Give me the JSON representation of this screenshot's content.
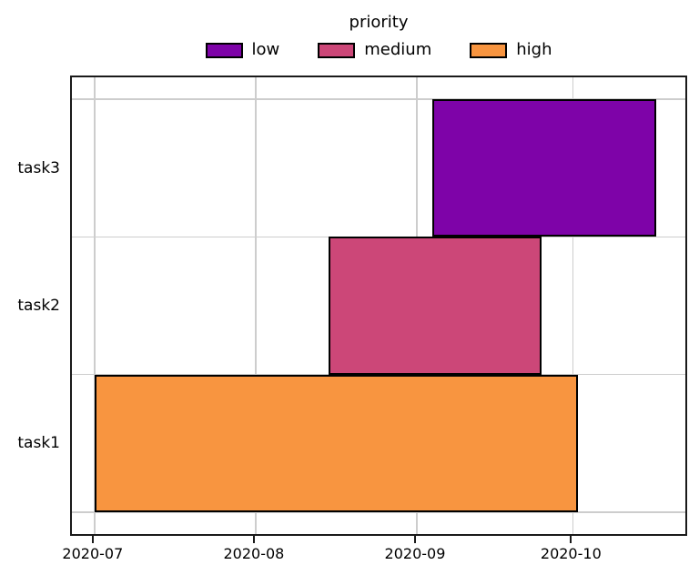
{
  "chart_data": {
    "type": "gantt",
    "title": "",
    "legend": {
      "position": "top-center",
      "title": "priority",
      "entries": [
        {
          "label": "low",
          "color": "#7e03a8"
        },
        {
          "label": "medium",
          "color": "#cc4778"
        },
        {
          "label": "high",
          "color": "#f89540"
        }
      ]
    },
    "x_axis": {
      "type": "date",
      "tick_labels": [
        "2020-07",
        "2020-08",
        "2020-09",
        "2020-10"
      ],
      "tick_dates": [
        "2020-07-01",
        "2020-08-01",
        "2020-09-01",
        "2020-10-01"
      ],
      "xlim": [
        "2020-06-27",
        "2020-10-23"
      ]
    },
    "y_axis": {
      "tick_labels_bottom_to_top": [
        "task1",
        "task2",
        "task3"
      ]
    },
    "grid": true,
    "series": [
      {
        "task": "task1",
        "start": "2020-07-01",
        "end": "2020-10-02",
        "priority": "high",
        "color": "#f89540"
      },
      {
        "task": "task2",
        "start": "2020-08-15",
        "end": "2020-09-25",
        "priority": "medium",
        "color": "#cc4778"
      },
      {
        "task": "task3",
        "start": "2020-09-04",
        "end": "2020-10-17",
        "priority": "low",
        "color": "#7e03a8"
      }
    ],
    "colors": {
      "background": "#ffffff",
      "grid": "#cdcdcd",
      "spine": "#1a1a1a",
      "bar_edge": "#000000",
      "text": "#000000"
    }
  }
}
